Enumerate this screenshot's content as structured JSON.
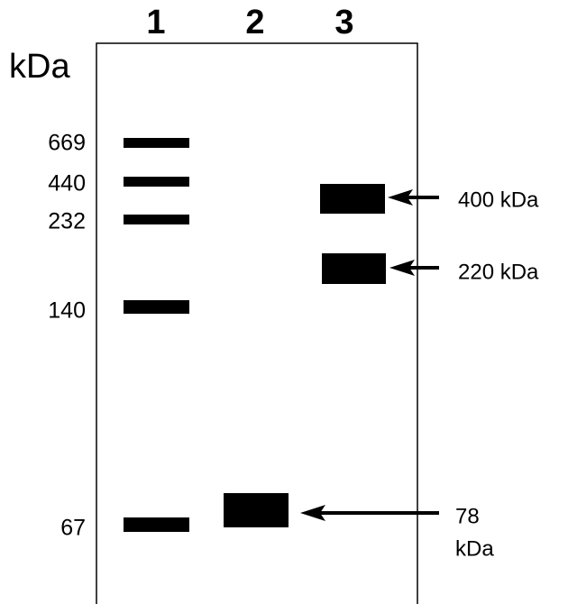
{
  "lanes": [
    "1",
    "2",
    "3"
  ],
  "unit": "kDa",
  "markers": [
    "669",
    "440",
    "232",
    "140",
    "67"
  ],
  "annotations": [
    {
      "label": "400 kDa"
    },
    {
      "label": "220 kDa"
    },
    {
      "label_lines": [
        "78",
        "kDa"
      ]
    }
  ]
}
